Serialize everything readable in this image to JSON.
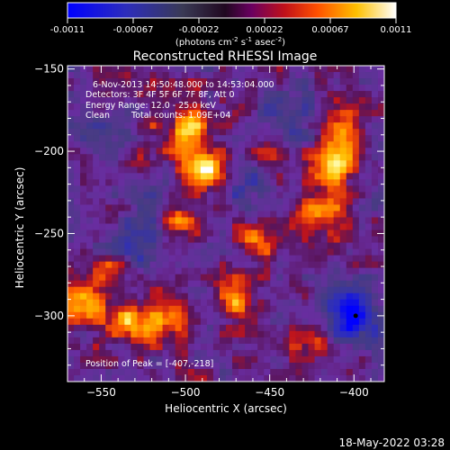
{
  "colorbar": {
    "ticks": [
      "-0.0011",
      "-0.00067",
      "-0.00022",
      "0.00022",
      "0.00067",
      "0.0011"
    ],
    "units_prefix": "(photons cm",
    "units_sup1": "-2",
    "units_mid1": " s",
    "units_sup2": "-1",
    "units_mid2": " asec",
    "units_sup3": "-2",
    "units_suffix": ")"
  },
  "chart_data": {
    "type": "heatmap",
    "title": "Reconstructed RHESSI Image",
    "xlabel": "Heliocentric X (arcsec)",
    "ylabel": "Heliocentric Y (arcsec)",
    "xlim": [
      -570,
      -382
    ],
    "ylim": [
      -340,
      -148
    ],
    "x_ticks": [
      {
        "value": -550,
        "label": "−550"
      },
      {
        "value": -500,
        "label": "−500"
      },
      {
        "value": -450,
        "label": "−450"
      },
      {
        "value": -400,
        "label": "−400"
      }
    ],
    "y_ticks": [
      {
        "value": -150,
        "label": "−150"
      },
      {
        "value": -200,
        "label": "−200"
      },
      {
        "value": -250,
        "label": "−250"
      },
      {
        "value": -300,
        "label": "−300"
      }
    ],
    "colorbar_range": [
      -0.0011,
      0.0011
    ],
    "colormap": [
      "#0000ff",
      "#3030a0",
      "#404040",
      "#6a10a0",
      "#d01010",
      "#ff7800",
      "#ffe000",
      "#ffffff"
    ],
    "sources": [
      {
        "x": -488,
        "y": -212,
        "intensity": 0.0011
      },
      {
        "x": -497,
        "y": -186,
        "intensity": 0.0008
      },
      {
        "x": -505,
        "y": -242,
        "intensity": 0.0007
      },
      {
        "x": -413,
        "y": -210,
        "intensity": 0.0009
      },
      {
        "x": -407,
        "y": -190,
        "intensity": 0.0008
      },
      {
        "x": -420,
        "y": -239,
        "intensity": 0.0007
      },
      {
        "x": -458,
        "y": -254,
        "intensity": 0.0006
      },
      {
        "x": -470,
        "y": -292,
        "intensity": 0.0006
      },
      {
        "x": -560,
        "y": -292,
        "intensity": 0.0008
      },
      {
        "x": -532,
        "y": -304,
        "intensity": 0.0008
      },
      {
        "x": -510,
        "y": -300,
        "intensity": 0.0007
      },
      {
        "x": -541,
        "y": -272,
        "intensity": 0.0005
      },
      {
        "x": -448,
        "y": -205,
        "intensity": 0.0004
      },
      {
        "x": -520,
        "y": -196,
        "intensity": 0.0003
      },
      {
        "x": -425,
        "y": -315,
        "intensity": 0.0004
      }
    ],
    "negative_regions": [
      {
        "x": -400,
        "y": -300,
        "intensity": -0.0011
      },
      {
        "x": -528,
        "y": -258,
        "intensity": -0.0007
      },
      {
        "x": -440,
        "y": -184,
        "intensity": -0.0005
      },
      {
        "x": -464,
        "y": -220,
        "intensity": -0.0004
      },
      {
        "x": -552,
        "y": -190,
        "intensity": -0.0003
      },
      {
        "x": -525,
        "y": -222,
        "intensity": -0.0003
      }
    ],
    "annotations": {
      "time": "6-Nov-2013 14:50:48.000 to 14:53:04.000",
      "detectors": "Detectors: 3F 4F 5F 6F 7F 8F, Att 0",
      "energy": "Energy Range: 12.0 - 25.0 keV",
      "method": "Clean",
      "total_counts": "Total counts: 1.09E+04",
      "peak_label": "Position of Peak =",
      "peak_value": "[-407,-218]"
    },
    "peak": {
      "x": -407,
      "y": -218
    },
    "marker": {
      "x": -399,
      "y": -300
    }
  },
  "footer": {
    "timestamp": "18-May-2022 03:28"
  }
}
